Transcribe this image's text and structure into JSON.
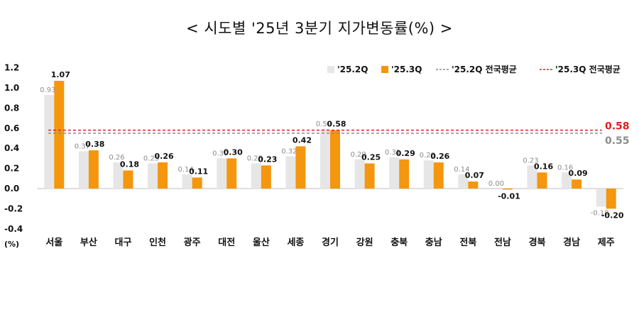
{
  "title": "< 시도별 '25년 3분기 지가변동률(%) >",
  "chart_data": {
    "type": "bar",
    "categories": [
      "서울",
      "부산",
      "대구",
      "인천",
      "광주",
      "대전",
      "울산",
      "세종",
      "경기",
      "강원",
      "충북",
      "충남",
      "전북",
      "전남",
      "경북",
      "경남",
      "제주"
    ],
    "series": [
      {
        "name": "'25.2Q",
        "color": "#e6e6e6",
        "values": [
          0.93,
          0.37,
          0.26,
          0.25,
          0.14,
          0.3,
          0.25,
          0.32,
          0.59,
          0.29,
          0.31,
          0.28,
          0.14,
          0.0,
          0.23,
          0.16,
          -0.18
        ]
      },
      {
        "name": "'25.3Q",
        "color": "#f5960f",
        "values": [
          1.07,
          0.38,
          0.18,
          0.26,
          0.11,
          0.3,
          0.23,
          0.42,
          0.58,
          0.25,
          0.29,
          0.26,
          0.07,
          -0.01,
          0.16,
          0.09,
          -0.2
        ]
      }
    ],
    "reference_lines": [
      {
        "name": "'25.2Q 전국평균",
        "value": 0.55,
        "label": "0.55",
        "color": "#8c8c8c",
        "style": "dashed"
      },
      {
        "name": "'25.3Q 전국평균",
        "value": 0.58,
        "label": "0.58",
        "color": "#e02020",
        "style": "dashed"
      }
    ],
    "ylim": [
      -0.4,
      1.2
    ],
    "yticks": [
      "-0.4",
      "-0.2",
      "0.0",
      "0.2",
      "0.4",
      "0.6",
      "0.8",
      "1.0",
      "1.2"
    ],
    "ylabel": "(%)",
    "grid": false,
    "legend_position": "top-right"
  }
}
